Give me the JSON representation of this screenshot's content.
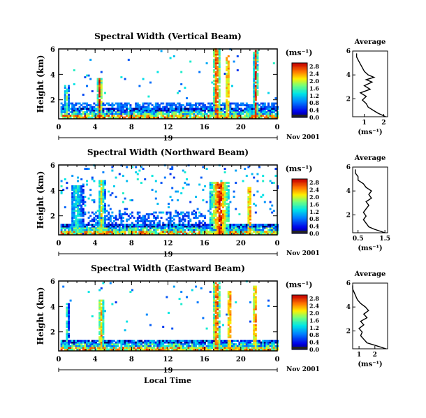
{
  "chart_data": [
    {
      "type": "heatmap",
      "title": "Spectral Width (Vertical Beam)",
      "ylabel": "Height (km)",
      "xlim": [
        0,
        24
      ],
      "ylim": [
        0.5,
        6
      ],
      "xticks": [
        "0",
        "4",
        "8",
        "12",
        "16",
        "20",
        "0"
      ],
      "yticks": [
        "2",
        "4",
        "6"
      ],
      "date_day": "19",
      "date_label": "Nov 2001",
      "colorbar": {
        "unit": "(ms⁻¹)",
        "ticks": [
          "0.0",
          "0.4",
          "0.8",
          "1.2",
          "1.6",
          "2.0",
          "2.4",
          "2.8"
        ]
      },
      "bursts": [
        {
          "t": 0.5,
          "w": 0.5,
          "top": 3.1,
          "val": 1.8
        },
        {
          "t": 4.1,
          "w": 0.6,
          "top": 3.6,
          "val": 2.8
        },
        {
          "t": 16.8,
          "w": 0.9,
          "top": 6.0,
          "val": 2.8
        },
        {
          "t": 18.2,
          "w": 0.5,
          "top": 5.4,
          "val": 2.8
        },
        {
          "t": 21.3,
          "w": 0.5,
          "top": 5.8,
          "val": 2.8
        }
      ],
      "average": {
        "xticks": [
          "1",
          "2"
        ],
        "xlim": [
          0.4,
          2.2
        ],
        "heights": [
          0.5,
          0.8,
          1.0,
          1.3,
          1.6,
          1.9,
          2.2,
          2.5,
          2.8,
          3.1,
          3.4,
          3.6,
          3.8,
          4.0,
          4.3,
          4.6,
          4.9,
          5.2,
          5.5,
          5.8
        ],
        "values": [
          2.1,
          1.7,
          1.5,
          1.2,
          1.1,
          0.9,
          1.1,
          0.8,
          1.3,
          1.0,
          1.4,
          1.1,
          1.5,
          1.2,
          1.0,
          0.9,
          0.8,
          0.7,
          0.6,
          0.6
        ]
      }
    },
    {
      "type": "heatmap",
      "title": "Spectral Width (Northward Beam)",
      "ylabel": "Height (km)",
      "xlim": [
        0,
        24
      ],
      "ylim": [
        0.5,
        6
      ],
      "xticks": [
        "0",
        "4",
        "8",
        "12",
        "16",
        "20",
        "0"
      ],
      "yticks": [
        "2",
        "4",
        "6"
      ],
      "date_day": "19",
      "date_label": "Nov 2001",
      "colorbar": {
        "unit": "(ms⁻¹)",
        "ticks": [
          "0.0",
          "0.4",
          "0.8",
          "1.2",
          "1.6",
          "2.0",
          "2.4",
          "2.8"
        ]
      },
      "bursts": [
        {
          "t": 1.2,
          "w": 1.4,
          "top": 4.3,
          "val": 1.4
        },
        {
          "t": 4.2,
          "w": 0.8,
          "top": 4.8,
          "val": 2.0
        },
        {
          "t": 16.5,
          "w": 2.2,
          "top": 4.6,
          "val": 2.8
        },
        {
          "t": 20.6,
          "w": 0.5,
          "top": 4.2,
          "val": 2.8
        }
      ],
      "average": {
        "xticks": [
          "0.5",
          "1.5"
        ],
        "xlim": [
          0.3,
          1.6
        ],
        "heights": [
          0.5,
          0.8,
          1.0,
          1.3,
          1.6,
          1.9,
          2.2,
          2.5,
          2.8,
          3.1,
          3.4,
          3.7,
          4.0,
          4.3,
          4.6,
          4.9,
          5.2,
          5.5,
          5.8
        ],
        "values": [
          1.5,
          1.1,
          0.9,
          0.8,
          0.7,
          0.8,
          0.7,
          0.8,
          0.9,
          0.8,
          1.0,
          0.9,
          1.0,
          0.8,
          0.7,
          0.5,
          0.5,
          0.4,
          0.4
        ]
      }
    },
    {
      "type": "heatmap",
      "title": "Spectral Width (Eastward Beam)",
      "ylabel": "Height (km)",
      "xlabel": "Local Time",
      "xlim": [
        0,
        24
      ],
      "ylim": [
        0.5,
        6
      ],
      "xticks": [
        "0",
        "4",
        "8",
        "12",
        "16",
        "20",
        "0"
      ],
      "yticks": [
        "2",
        "4",
        "6"
      ],
      "date_day": "19",
      "date_label": "Nov 2001",
      "colorbar": {
        "unit": "(ms⁻¹)",
        "ticks": [
          "0.0",
          "0.4",
          "0.8",
          "1.2",
          "1.6",
          "2.0",
          "2.4",
          "2.8"
        ]
      },
      "bursts": [
        {
          "t": 0.6,
          "w": 0.4,
          "top": 4.2,
          "val": 1.4
        },
        {
          "t": 4.2,
          "w": 0.7,
          "top": 4.5,
          "val": 2.4
        },
        {
          "t": 16.8,
          "w": 0.9,
          "top": 5.8,
          "val": 2.8
        },
        {
          "t": 18.4,
          "w": 0.5,
          "top": 5.2,
          "val": 2.8
        },
        {
          "t": 21.2,
          "w": 0.5,
          "top": 5.6,
          "val": 2.8
        }
      ],
      "average": {
        "xticks": [
          "1",
          "2"
        ],
        "xlim": [
          0.6,
          2.8
        ],
        "heights": [
          0.5,
          0.8,
          1.0,
          1.3,
          1.6,
          1.9,
          2.2,
          2.5,
          2.8,
          3.1,
          3.4,
          3.7,
          4.0,
          4.3,
          4.6,
          4.9,
          5.2,
          5.5,
          5.8
        ],
        "values": [
          2.7,
          2.0,
          1.5,
          1.3,
          1.1,
          1.2,
          1.0,
          1.3,
          1.1,
          1.5,
          1.3,
          1.6,
          1.4,
          1.1,
          0.9,
          0.8,
          0.7,
          0.6,
          0.6
        ]
      }
    }
  ],
  "common": {
    "avg_title": "Average",
    "avg_unit": "(ms⁻¹)"
  }
}
